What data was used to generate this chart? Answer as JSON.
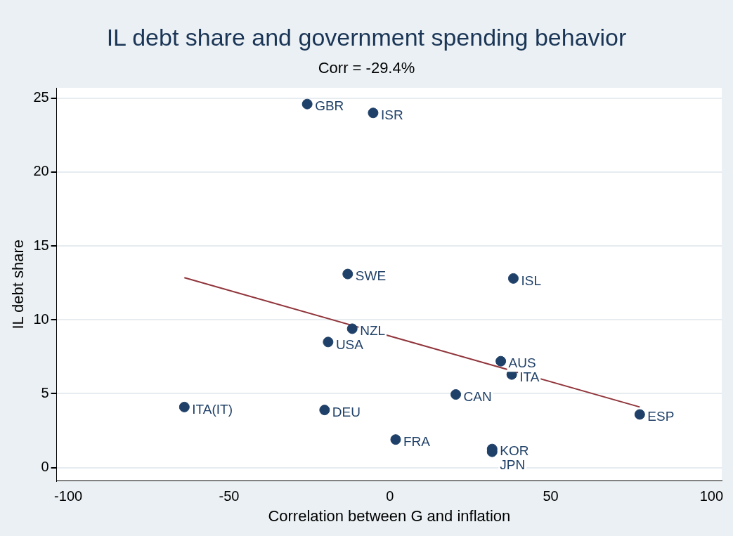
{
  "chart_data": {
    "type": "scatter",
    "title": "IL debt share and government spending behavior",
    "subtitle": "Corr = -29.4%",
    "xlabel": "Correlation between G and inflation",
    "ylabel": "IL debt share",
    "series": [
      {
        "color": "#1f4068",
        "x": [
          -25.7,
          -5.2,
          -13.1,
          38.4,
          -11.7,
          -19.2,
          34.5,
          37.9,
          20.5,
          -63.9,
          -20.3,
          77.7,
          1.8,
          31.8,
          31.8
        ],
        "values": [
          24.6,
          24.0,
          13.1,
          12.8,
          9.4,
          8.5,
          7.2,
          6.3,
          4.95,
          4.1,
          3.9,
          3.6,
          1.9,
          1.26,
          1.07
        ]
      },
      {
        "type": "line",
        "color": "#90353b",
        "marker": "none",
        "x": [
          -63.9,
          77.7
        ],
        "values": [
          12.85,
          4.1
        ]
      }
    ],
    "annotations": [
      {
        "text": "GBR",
        "x": -25.7,
        "y": 24.6
      },
      {
        "text": "ISR",
        "x": -5.2,
        "y": 24.0
      },
      {
        "text": "SWE",
        "x": -13.1,
        "y": 13.1
      },
      {
        "text": "ISL",
        "x": 38.4,
        "y": 12.8
      },
      {
        "text": "NZL",
        "x": -11.7,
        "y": 9.4
      },
      {
        "text": "USA",
        "x": -19.2,
        "y": 8.5
      },
      {
        "text": "AUS",
        "x": 34.5,
        "y": 7.2
      },
      {
        "text": "ITA",
        "x": 37.9,
        "y": 6.3
      },
      {
        "text": "CAN",
        "x": 20.5,
        "y": 4.95
      },
      {
        "text": "ITA(IT)",
        "x": -63.9,
        "y": 4.1
      },
      {
        "text": "DEU",
        "x": -20.3,
        "y": 3.9
      },
      {
        "text": "ESP",
        "x": 77.7,
        "y": 3.6
      },
      {
        "text": "FRA",
        "x": 1.8,
        "y": 1.9
      },
      {
        "text": "KOR",
        "x": 31.8,
        "y": 1.26
      },
      {
        "text": "JPN",
        "x": 31.8,
        "y": 1.07
      }
    ],
    "xlim": [
      -103.6,
      103.2
    ],
    "xticks": [
      -100,
      -50,
      0,
      50,
      100
    ],
    "ylim": [
      -0.9,
      25.7
    ],
    "yticks": [
      0,
      5,
      10,
      15,
      20,
      25
    ],
    "grid": "y",
    "marker": "circle",
    "legend": false
  }
}
